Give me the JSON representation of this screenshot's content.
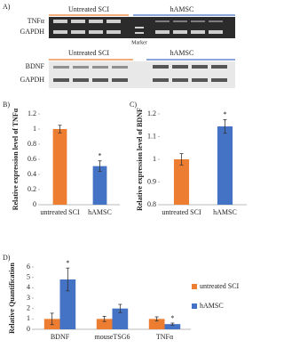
{
  "gel": {
    "label": "A)",
    "top": {
      "groups": [
        "Untreated SCI",
        "hAMSC"
      ],
      "rows": [
        "TNFα",
        "GAPDH"
      ],
      "marker": "Marker"
    },
    "bottom": {
      "groups": [
        "Untreated SCI",
        "hAMSC"
      ],
      "rows": [
        "BDNF",
        "GAPDH"
      ]
    }
  },
  "chart_data": [
    {
      "type": "bar",
      "label": "B)",
      "ylabel": "Relative expression level of TNFα",
      "categories": [
        "untreated SCI",
        "hAMSC"
      ],
      "values": [
        1.0,
        0.51
      ],
      "errors": [
        0.05,
        0.07
      ],
      "colors": [
        "#ed7d31",
        "#4472c4"
      ],
      "ylim": [
        0,
        1.2
      ],
      "yticks": [
        0,
        0.2,
        0.4,
        0.6,
        0.8,
        1,
        1.2
      ],
      "annotations": [
        {
          "text": "*",
          "category": "hAMSC"
        }
      ]
    },
    {
      "type": "bar",
      "label": "C)",
      "ylabel": "Relative expression level of BDNF",
      "categories": [
        "untreated SCI",
        "hAMSC"
      ],
      "values": [
        1.0,
        1.145
      ],
      "errors": [
        0.025,
        0.03
      ],
      "colors": [
        "#ed7d31",
        "#4472c4"
      ],
      "ylim": [
        0.8,
        1.2
      ],
      "yticks": [
        0.8,
        0.9,
        1,
        1.1,
        1.2
      ],
      "annotations": [
        {
          "text": "*",
          "category": "hAMSC"
        }
      ]
    },
    {
      "type": "bar",
      "label": "D)",
      "ylabel": "Relative Quantification",
      "categories": [
        "BDNF",
        "mouseTSG6",
        "TNFα"
      ],
      "series": [
        {
          "name": "untreated SCI",
          "color": "#ed7d31",
          "values": [
            1,
            1,
            1
          ],
          "errors": [
            0.55,
            0.25,
            0.2
          ]
        },
        {
          "name": "hAMSC",
          "color": "#4472c4",
          "values": [
            4.8,
            2.0,
            0.5
          ],
          "errors": [
            1.1,
            0.4,
            0.1
          ]
        }
      ],
      "ylim": [
        0,
        6
      ],
      "yticks": [
        0,
        1,
        2,
        3,
        4,
        5,
        6
      ],
      "legend": "right",
      "annotations": [
        {
          "text": "*",
          "series": "hAMSC",
          "category": "BDNF"
        },
        {
          "text": "*",
          "series": "hAMSC",
          "category": "TNFα"
        }
      ]
    }
  ]
}
